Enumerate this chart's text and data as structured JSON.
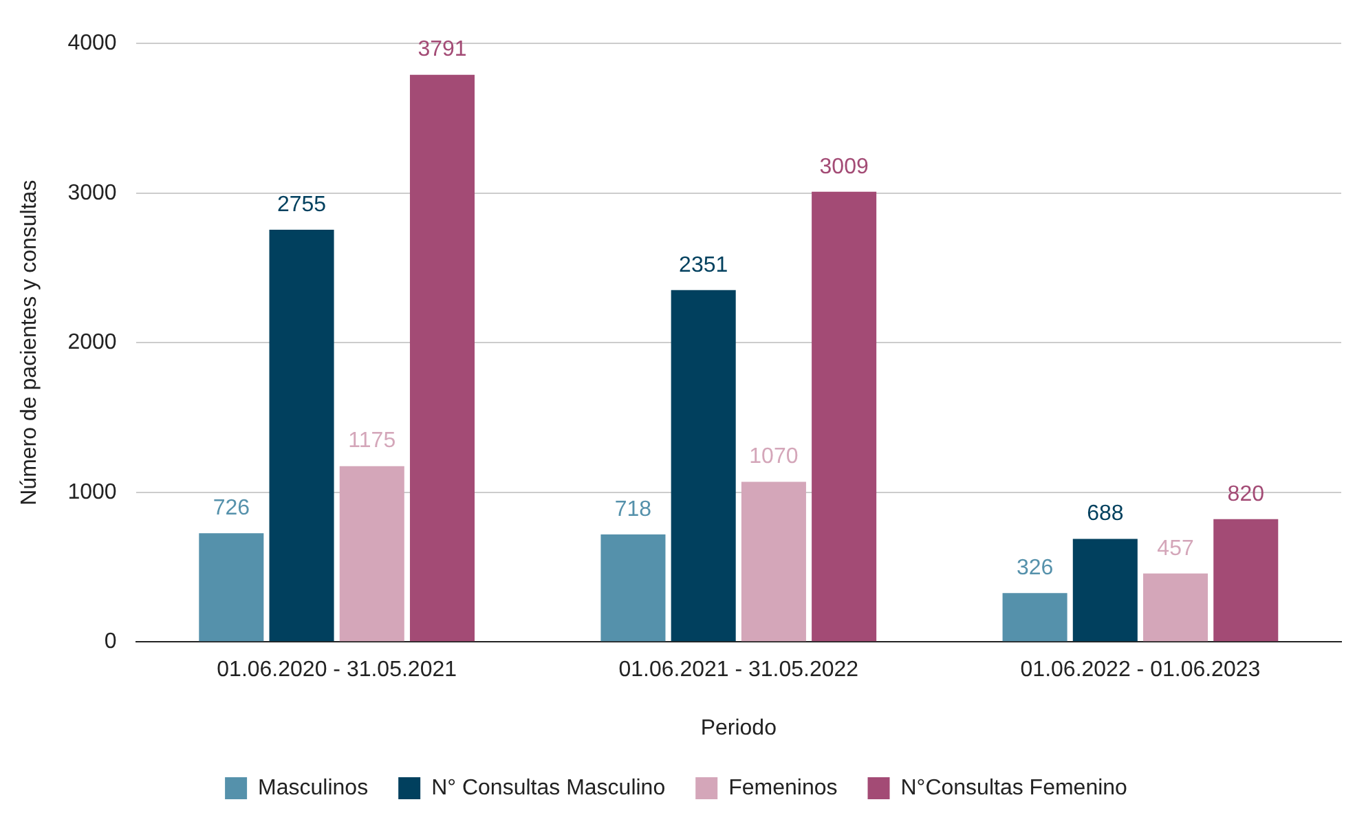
{
  "chart_data": {
    "type": "bar",
    "xlabel": "Periodo",
    "ylabel": "Número de pacientes y consultas",
    "categories": [
      "01.06.2020 - 31.05.2021",
      "01.06.2021 - 31.05.2022",
      "01.06.2022 - 01.06.2023"
    ],
    "series": [
      {
        "name": "Masculinos",
        "color": "#5591ab",
        "values": [
          726,
          718,
          326
        ]
      },
      {
        "name": "N° Consultas Masculino",
        "color": "#01405e",
        "values": [
          2755,
          2351,
          688
        ]
      },
      {
        "name": "Femeninos",
        "color": "#d4a6b9",
        "values": [
          1175,
          1070,
          457
        ]
      },
      {
        "name": "N°Consultas Femenino",
        "color": "#a34b75",
        "values": [
          3791,
          3009,
          820
        ]
      }
    ],
    "ylim": [
      0,
      4000
    ],
    "yticks": [
      0,
      1000,
      2000,
      3000,
      4000
    ],
    "grid": "y",
    "legend": "bottom",
    "data_labels": true
  }
}
